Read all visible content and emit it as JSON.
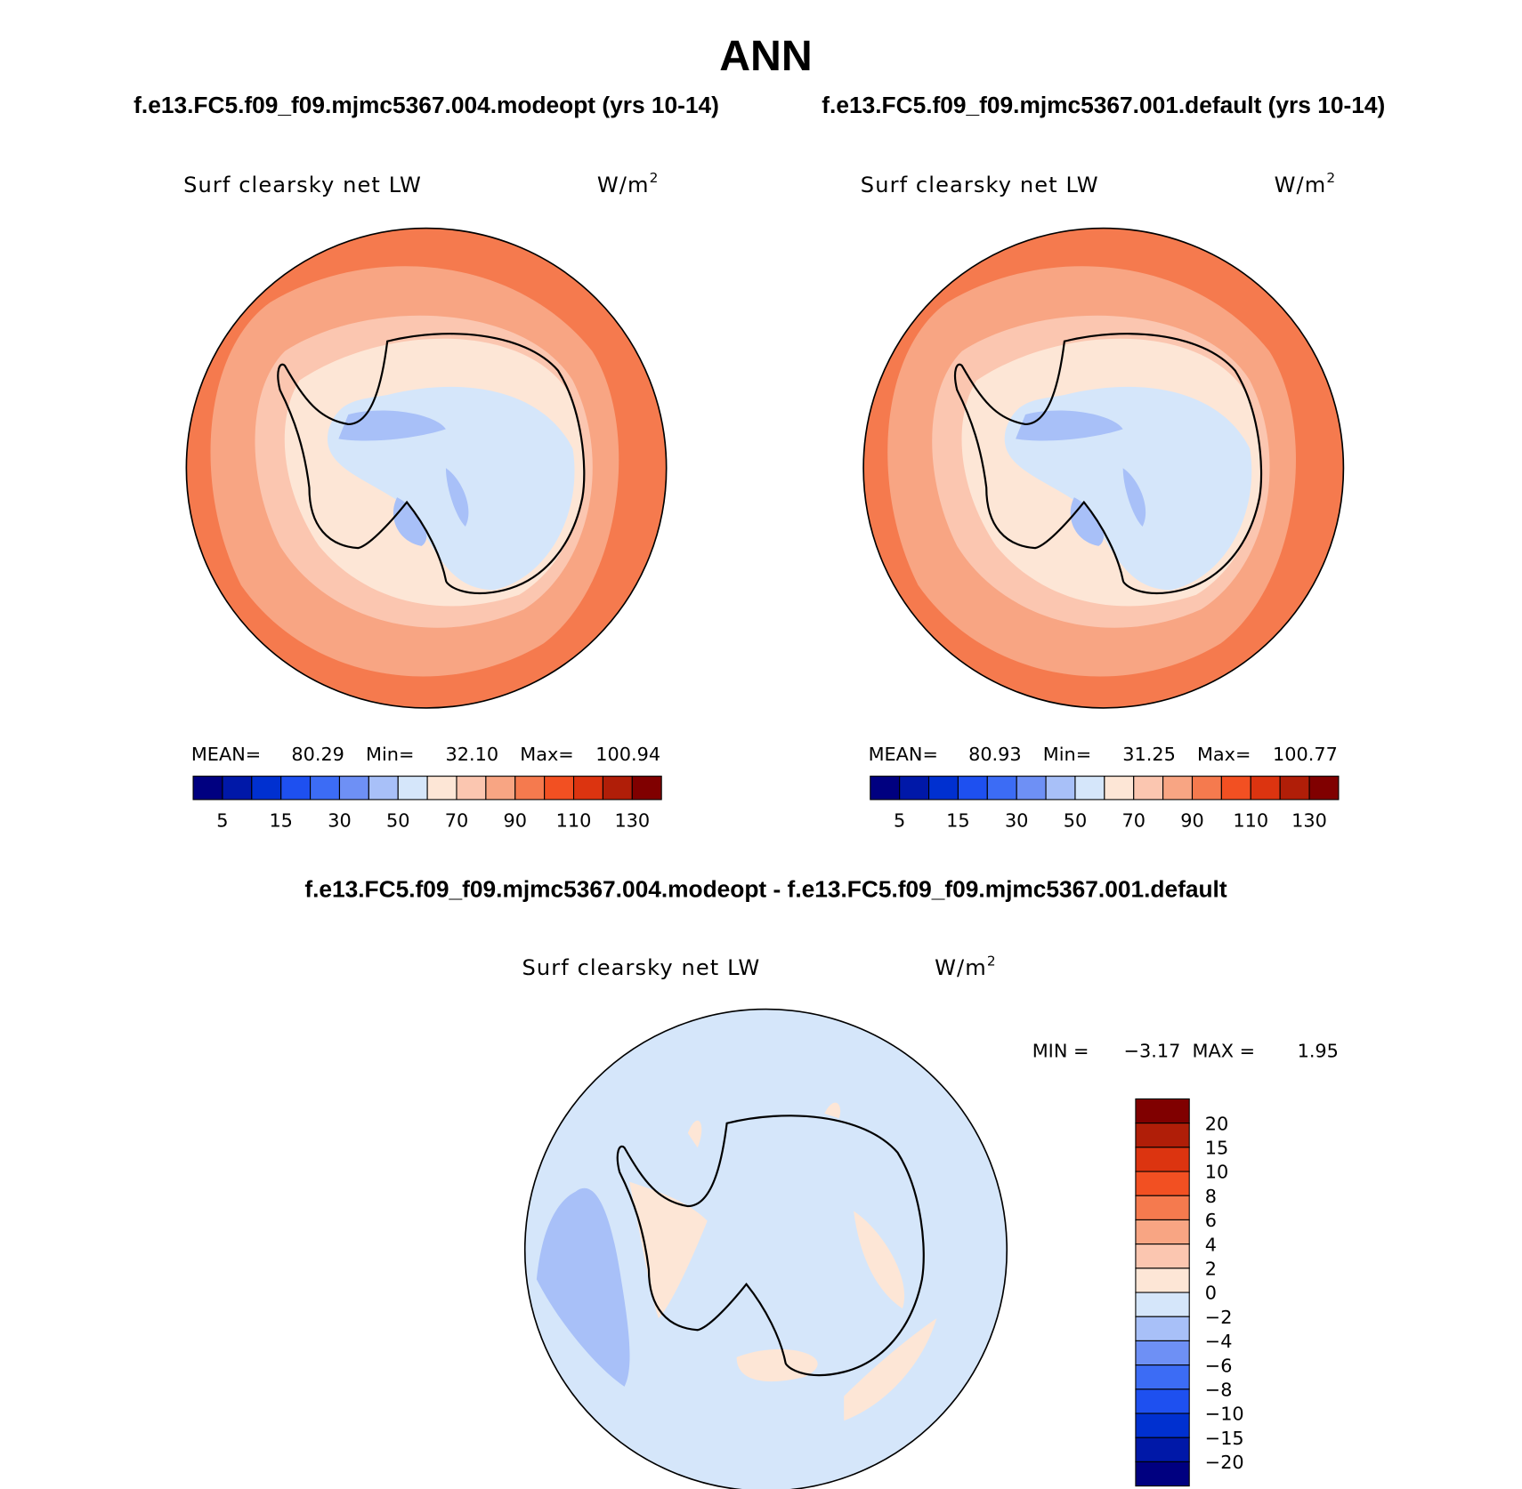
{
  "header": {
    "title": "ANN"
  },
  "panels": [
    {
      "subtitle": "f.e13.FC5.f09_f09.mjmc5367.004.modeopt (yrs 10-14)",
      "variable": "Surf clearsky net LW",
      "unit": "W/m",
      "unit_sup": "2",
      "stats": [
        "MEAN=",
        "80.29",
        "Min=",
        "32.10",
        "Max=",
        "100.94"
      ]
    },
    {
      "subtitle": "f.e13.FC5.f09_f09.mjmc5367.001.default (yrs 10-14)",
      "variable": "Surf clearsky net LW",
      "unit": "W/m",
      "unit_sup": "2",
      "stats": [
        "MEAN=",
        "80.93",
        "Min=",
        "31.25",
        "Max=",
        "100.77"
      ]
    }
  ],
  "colorbar": {
    "colors": [
      "#000080",
      "#0018a8",
      "#0030d0",
      "#1e50f0",
      "#3c6cf5",
      "#6e90f5",
      "#a8c0f8",
      "#d5e6fa",
      "#fde6d6",
      "#fbc6b0",
      "#f8a583",
      "#f57a4e",
      "#f25022",
      "#dc3410",
      "#b01e08",
      "#800000"
    ],
    "labels": [
      "5",
      "15",
      "30",
      "50",
      "70",
      "90",
      "110",
      "130"
    ]
  },
  "difference": {
    "title": "f.e13.FC5.f09_f09.mjmc5367.004.modeopt - f.e13.FC5.f09_f09.mjmc5367.001.default",
    "variable": "Surf clearsky net LW",
    "unit": "W/m",
    "unit_sup": "2",
    "stats": [
      "MIN =",
      "−3.17",
      "MAX =",
      "1.95"
    ],
    "colorbar": {
      "colors": [
        "#800000",
        "#b01e08",
        "#dc3410",
        "#f25022",
        "#f57a4e",
        "#f8a583",
        "#fbc6b0",
        "#fde6d6",
        "#d5e6fa",
        "#a8c0f8",
        "#6e90f5",
        "#3c6cf5",
        "#1e50f0",
        "#0030d0",
        "#0018a8",
        "#000080"
      ],
      "labels": [
        "20",
        "15",
        "10",
        "8",
        "6",
        "4",
        "2",
        "0",
        "−2",
        "−4",
        "−6",
        "−8",
        "−10",
        "−15",
        "−20"
      ]
    }
  }
}
